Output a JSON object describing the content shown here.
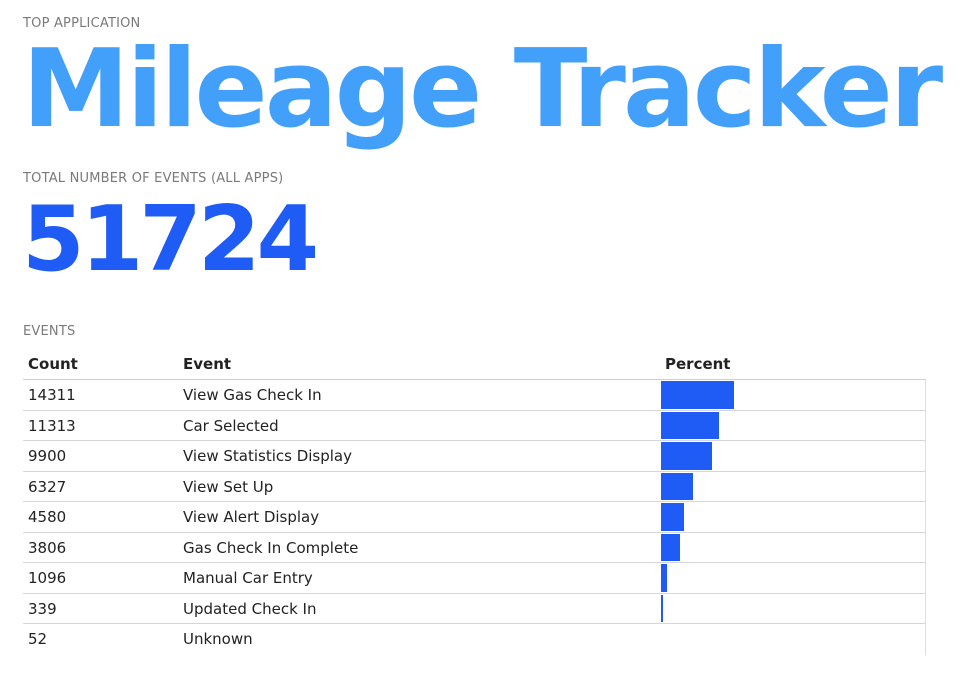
{
  "top_application": {
    "label": "TOP APPLICATION",
    "name": "Mileage Tracker"
  },
  "total_events": {
    "label": "TOTAL NUMBER OF EVENTS (ALL APPS)",
    "value": "51724"
  },
  "events": {
    "label": "EVENTS",
    "columns": {
      "count": "Count",
      "event": "Event",
      "percent": "Percent"
    },
    "rows": [
      {
        "count": "14311",
        "event": "View Gas Check In",
        "percent": 27.67
      },
      {
        "count": "11313",
        "event": "Car Selected",
        "percent": 21.87
      },
      {
        "count": "9900",
        "event": "View Statistics Display",
        "percent": 19.14
      },
      {
        "count": "6327",
        "event": "View Set Up",
        "percent": 12.23
      },
      {
        "count": "4580",
        "event": "View Alert Display",
        "percent": 8.85
      },
      {
        "count": "3806",
        "event": "Gas Check In Complete",
        "percent": 7.36
      },
      {
        "count": "1096",
        "event": "Manual Car Entry",
        "percent": 2.12
      },
      {
        "count": "339",
        "event": "Updated Check In",
        "percent": 0.66
      },
      {
        "count": "52",
        "event": "Unknown",
        "percent": 0.1
      }
    ]
  },
  "colors": {
    "app_name": "#42a0fa",
    "total_value": "#1f5cf5",
    "bar": "#1f5cf5"
  }
}
